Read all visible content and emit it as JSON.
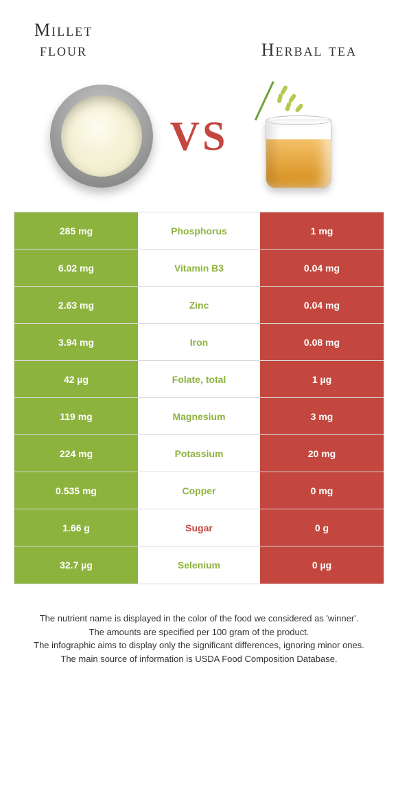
{
  "titles": {
    "left_line1": "Millet",
    "left_line2": "flour",
    "right": "Herbal tea"
  },
  "vs": "VS",
  "colors": {
    "green": "#8db33f",
    "red": "#c3473e",
    "border": "#d9d9d9",
    "text": "#333333",
    "bg": "#ffffff"
  },
  "rows": [
    {
      "left": "285 mg",
      "mid": "Phosphorus",
      "midColor": "green",
      "right": "1 mg"
    },
    {
      "left": "6.02 mg",
      "mid": "Vitamin B3",
      "midColor": "green",
      "right": "0.04 mg"
    },
    {
      "left": "2.63 mg",
      "mid": "Zinc",
      "midColor": "green",
      "right": "0.04 mg"
    },
    {
      "left": "3.94 mg",
      "mid": "Iron",
      "midColor": "green",
      "right": "0.08 mg"
    },
    {
      "left": "42 µg",
      "mid": "Folate, total",
      "midColor": "green",
      "right": "1 µg"
    },
    {
      "left": "119 mg",
      "mid": "Magnesium",
      "midColor": "green",
      "right": "3 mg"
    },
    {
      "left": "224 mg",
      "mid": "Potassium",
      "midColor": "green",
      "right": "20 mg"
    },
    {
      "left": "0.535 mg",
      "mid": "Copper",
      "midColor": "green",
      "right": "0 mg"
    },
    {
      "left": "1.66 g",
      "mid": "Sugar",
      "midColor": "red",
      "right": "0 g"
    },
    {
      "left": "32.7 µg",
      "mid": "Selenium",
      "midColor": "green",
      "right": "0 µg"
    }
  ],
  "footnote": {
    "l1": "The nutrient name is displayed in the color of the food we considered as 'winner'.",
    "l2": "The amounts are specified per 100 gram of the product.",
    "l3": "The infographic aims to display only the significant differences, ignoring minor ones.",
    "l4": "The main source of information is USDA Food Composition Database."
  }
}
